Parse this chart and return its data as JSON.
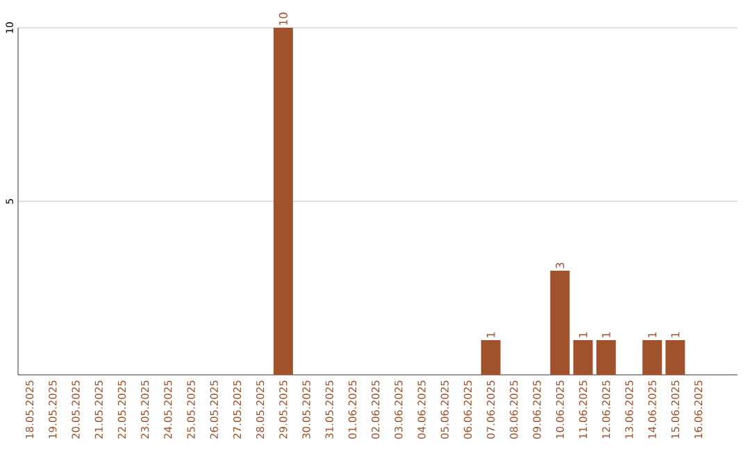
{
  "chart_data": {
    "type": "bar",
    "categories": [
      "18.05.2025",
      "19.05.2025",
      "20.05.2025",
      "21.05.2025",
      "22.05.2025",
      "23.05.2025",
      "24.05.2025",
      "25.05.2025",
      "26.05.2025",
      "27.05.2025",
      "28.05.2025",
      "29.05.2025",
      "30.05.2025",
      "31.05.2025",
      "01.06.2025",
      "02.06.2025",
      "03.06.2025",
      "04.06.2025",
      "05.06.2025",
      "06.06.2025",
      "07.06.2025",
      "08.06.2025",
      "09.06.2025",
      "10.06.2025",
      "11.06.2025",
      "12.06.2025",
      "13.06.2025",
      "14.06.2025",
      "15.06.2025",
      "16.06.2025"
    ],
    "values": [
      0,
      0,
      0,
      0,
      0,
      0,
      0,
      0,
      0,
      0,
      0,
      10,
      0,
      0,
      0,
      0,
      0,
      0,
      0,
      0,
      1,
      0,
      0,
      3,
      1,
      1,
      0,
      1,
      1,
      0
    ],
    "value_labels": [
      null,
      null,
      null,
      null,
      null,
      null,
      null,
      null,
      null,
      null,
      null,
      "10",
      null,
      null,
      null,
      null,
      null,
      null,
      null,
      null,
      "1",
      null,
      null,
      "3",
      "1",
      "1",
      null,
      "1",
      "1",
      null
    ],
    "color": "#a0522d",
    "ylim": [
      0,
      10
    ],
    "yticks": [
      5,
      10
    ],
    "grid": "y"
  }
}
